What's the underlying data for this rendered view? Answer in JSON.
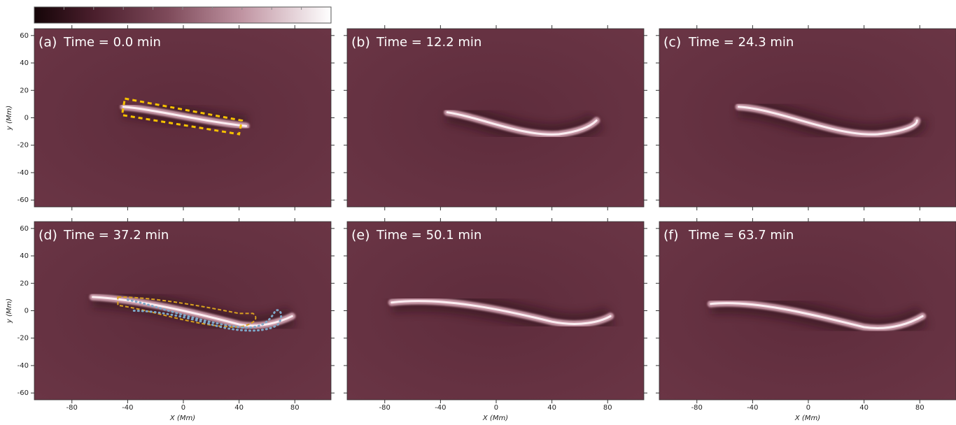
{
  "xlim": [
    -107,
    106
  ],
  "ylim": [
    -65,
    65
  ],
  "xticks": [
    -80,
    -40,
    0,
    40,
    80
  ],
  "yticks": [
    -60,
    -40,
    -20,
    0,
    20,
    40,
    60
  ],
  "xlabel": "X (Mm)",
  "ylabel": "y (Mm)",
  "panels": [
    {
      "label": "(a)",
      "title": "Time = 0.0 min"
    },
    {
      "label": "(b)",
      "title": "Time = 12.2 min"
    },
    {
      "label": "(c)",
      "title": "Time = 24.3 min"
    },
    {
      "label": "(d)",
      "title": "Time = 37.2 min"
    },
    {
      "label": "(e)",
      "title": "Time = 50.1 min"
    },
    {
      "label": "(f)",
      "title": "Time = 63.7 min"
    }
  ]
}
